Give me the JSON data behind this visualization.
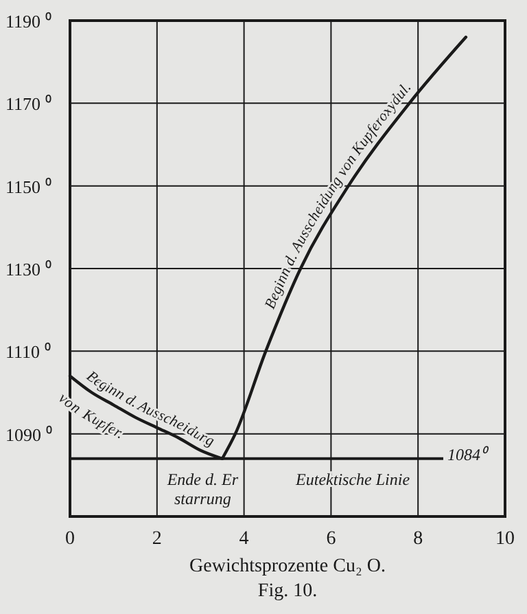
{
  "chart_data": {
    "type": "line",
    "xlabel": "Gewichtsprozente Cu₂ O.",
    "xlim": [
      0,
      10
    ],
    "xticks": [
      0,
      2,
      4,
      6,
      8,
      10
    ],
    "ylim": [
      1070,
      1190
    ],
    "yticks": [
      {
        "value": 1070,
        "label": null
      },
      {
        "value": 1090,
        "label": "1090 ⁰"
      },
      {
        "value": 1110,
        "label": "1110 ⁰"
      },
      {
        "value": 1130,
        "label": "1130 ⁰"
      },
      {
        "value": 1150,
        "label": "1150 ⁰"
      },
      {
        "value": 1170,
        "label": "1170 ⁰"
      },
      {
        "value": 1190,
        "label": "1190 ⁰"
      }
    ],
    "grid": true,
    "marker": "none",
    "line_style": "solid",
    "series": [
      {
        "name": "Beginn d. Ausscheidung\nvon Kupfer.",
        "color": "#1a1a1a",
        "x": [
          0,
          0.5,
          1,
          1.5,
          2,
          2.5,
          3,
          3.5
        ],
        "values": [
          1104,
          1100,
          1097,
          1094,
          1091.5,
          1089,
          1086,
          1084
        ]
      },
      {
        "name": "Beginn d. Ausscheidung von Kupferoxydul.",
        "color": "#1a1a1a",
        "x": [
          3.5,
          3.8,
          4.5,
          5.3,
          6.4,
          7.8,
          9.1
        ],
        "values": [
          1084,
          1090,
          1110,
          1130,
          1150,
          1170,
          1186
        ]
      }
    ],
    "ref_lines": [
      {
        "axis": "y",
        "value": 1084,
        "label": "1084⁰",
        "color": "#1a1a1a",
        "line_style": "solid"
      }
    ],
    "annotations": [
      {
        "text": "Ende d. Er\nstarrung",
        "x": 3.05,
        "y": 1084
      },
      {
        "text": "Eutektische Linie",
        "x": 6.5,
        "y": 1084
      },
      "Fig. 10."
    ]
  }
}
